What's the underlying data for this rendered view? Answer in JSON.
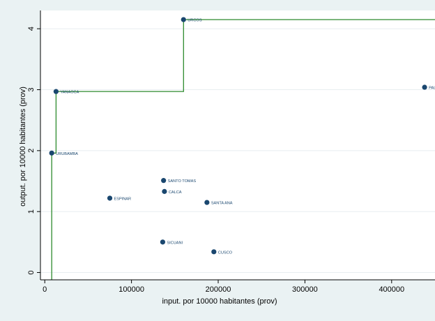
{
  "chart_data": {
    "type": "scatter",
    "title": "",
    "xlabel": "input. por 10000 habitantes (prov)",
    "ylabel": "output. por 10000 habitantes (prov)",
    "xlim": [
      -5000,
      450000
    ],
    "ylim": [
      -0.12,
      4.3
    ],
    "xticks": [
      0,
      100000,
      200000,
      300000,
      400000
    ],
    "xtick_labels": [
      "0",
      "100000",
      "200000",
      "300000",
      "400000"
    ],
    "yticks": [
      0,
      1,
      2,
      3,
      4
    ],
    "ytick_labels": [
      "0",
      "1",
      "2",
      "3",
      "4"
    ],
    "grid": true,
    "grid_axis": "y",
    "colors": {
      "plot_background": "#ffffff",
      "page_background": "#eaf2f3",
      "marker": "#1a476f",
      "frontier": "#2d8a2d",
      "grid": "#e8eef0",
      "axis": "#000000"
    },
    "points": [
      {
        "label": "URUBAMBA",
        "x": 8000,
        "y": 1.96
      },
      {
        "label": "YANAOCA",
        "x": 13000,
        "y": 2.97
      },
      {
        "label": "URCOS",
        "x": 160000,
        "y": 4.15
      },
      {
        "label": "PAUCARTAMBO",
        "x": 438000,
        "y": 3.04
      },
      {
        "label": "SANTO TOMAS",
        "x": 137000,
        "y": 1.51
      },
      {
        "label": "CALCA",
        "x": 138000,
        "y": 1.33
      },
      {
        "label": "ESPINAR",
        "x": 75000,
        "y": 1.22
      },
      {
        "label": "SANTA ANA",
        "x": 187000,
        "y": 1.15
      },
      {
        "label": "SICUANI",
        "x": 136000,
        "y": 0.5
      },
      {
        "label": "CUSCO",
        "x": 195000,
        "y": 0.34
      }
    ],
    "frontier": {
      "x": [
        8000,
        8000,
        13000,
        13000,
        160000,
        160000,
        450000
      ],
      "y": [
        -0.12,
        1.96,
        1.96,
        2.97,
        2.97,
        4.15,
        4.15
      ]
    }
  }
}
